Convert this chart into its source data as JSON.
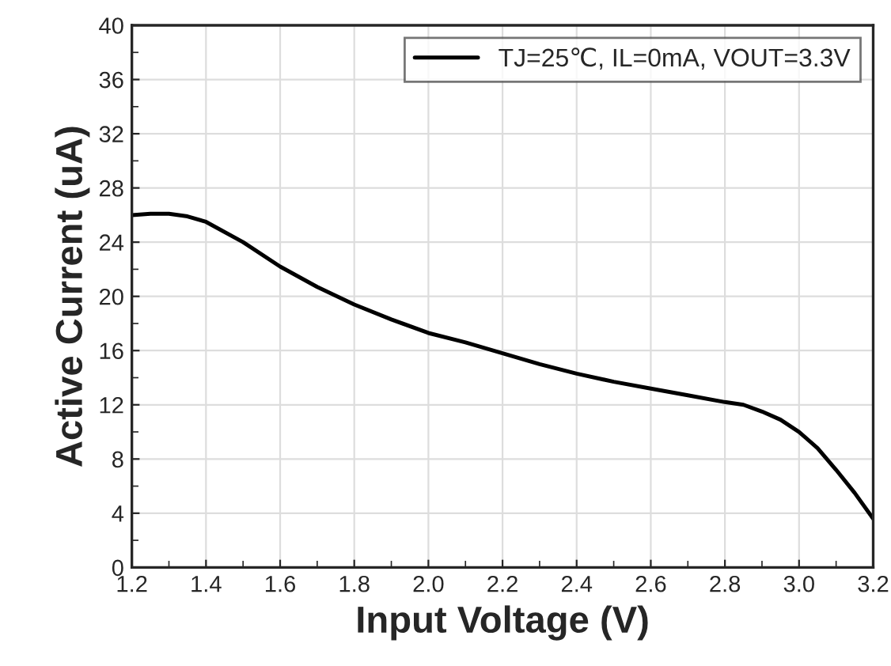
{
  "chart_data": {
    "type": "line",
    "xlabel": "Input Voltage (V)",
    "ylabel": "Active Current (uA)",
    "x": [
      1.2,
      1.25,
      1.3,
      1.35,
      1.4,
      1.5,
      1.6,
      1.7,
      1.8,
      1.9,
      2.0,
      2.1,
      2.2,
      2.3,
      2.4,
      2.5,
      2.6,
      2.7,
      2.8,
      2.85,
      2.9,
      2.95,
      3.0,
      3.05,
      3.1,
      3.15,
      3.2
    ],
    "series": [
      {
        "name": "TJ=25℃, IL=0mA, VOUT=3.3V",
        "color": "#000000",
        "values": [
          26.0,
          26.1,
          26.1,
          25.9,
          25.5,
          24.0,
          22.2,
          20.7,
          19.4,
          18.3,
          17.3,
          16.6,
          15.8,
          15.0,
          14.3,
          13.7,
          13.2,
          12.7,
          12.2,
          12.0,
          11.5,
          10.9,
          10.0,
          8.8,
          7.2,
          5.5,
          3.6
        ]
      }
    ],
    "xlim": [
      1.2,
      3.2
    ],
    "xticks": [
      {
        "value": 1.2,
        "label": "1.2"
      },
      {
        "value": 1.4,
        "label": "1.4"
      },
      {
        "value": 1.6,
        "label": "1.6"
      },
      {
        "value": 1.8,
        "label": "1.8"
      },
      {
        "value": 2.0,
        "label": "2.0"
      },
      {
        "value": 2.2,
        "label": "2.2"
      },
      {
        "value": 2.4,
        "label": "2.4"
      },
      {
        "value": 2.6,
        "label": "2.6"
      },
      {
        "value": 2.8,
        "label": "2.8"
      },
      {
        "value": 3.0,
        "label": "3.0"
      },
      {
        "value": 3.2,
        "label": "3.2"
      }
    ],
    "ylim": [
      0,
      40
    ],
    "yticks": [
      0,
      4,
      8,
      12,
      16,
      20,
      24,
      28,
      32,
      36,
      40
    ],
    "grid": true,
    "legend": "top right",
    "marker": "none",
    "line_style": "solid"
  }
}
